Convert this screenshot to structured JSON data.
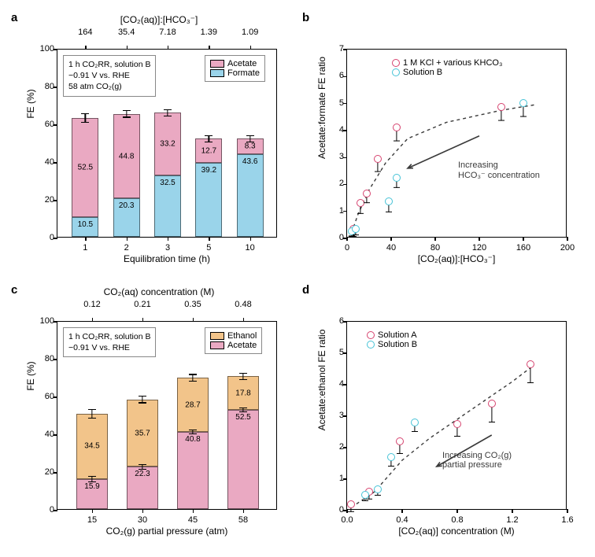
{
  "colors": {
    "acetate": "#eaa9c2",
    "formate": "#9ad4ea",
    "ethanol": "#f2c48a",
    "solutionA_marker": "#d6436f",
    "solutionB_marker": "#46c3d7",
    "kcl_marker": "#d6436f",
    "plot_border": "#000000",
    "annot_gray": "#3a3a3a"
  },
  "panel_a": {
    "label": "a",
    "type": "stacked-bar",
    "ylabel": "FE (%)",
    "xlabel": "Equilibration time (h)",
    "toplabel": "[CO₂(aq)]:[HCO₃⁻]",
    "topvals": [
      "164",
      "35.4",
      "7.18",
      "1.39",
      "1.09"
    ],
    "ylim": [
      0,
      100
    ],
    "ytick_step": 20,
    "categories": [
      "1",
      "2",
      "3",
      "5",
      "10"
    ],
    "series": [
      "Formate",
      "Acetate"
    ],
    "series_colors": {
      "Formate": "#9ad4ea",
      "Acetate": "#eaa9c2"
    },
    "stacks": [
      {
        "formate": 10.5,
        "acetate": 52.5
      },
      {
        "formate": 20.3,
        "acetate": 44.8
      },
      {
        "formate": 32.5,
        "acetate": 33.2
      },
      {
        "formate": 39.2,
        "acetate": 12.7
      },
      {
        "formate": 43.6,
        "acetate": 8.3
      }
    ],
    "err_total": [
      2.5,
      2,
      2,
      2,
      2
    ],
    "legend_items": [
      {
        "label": "Acetate",
        "color": "#eaa9c2"
      },
      {
        "label": "Formate",
        "color": "#9ad4ea"
      }
    ],
    "conditions": [
      "1 h CO₂RR, solution B",
      "−0.91 V vs. RHE",
      "58 atm CO₂(g)"
    ]
  },
  "panel_b": {
    "label": "b",
    "type": "scatter",
    "ylabel": "Acetate:formate FE ratio",
    "xlabel": "[CO₂(aq)]:[HCO₃⁻]",
    "xlim": [
      0,
      200
    ],
    "xtick_step": 40,
    "ylim": [
      0,
      7
    ],
    "ytick_step": 1,
    "legend_items": [
      {
        "label": "1 M KCl + various KHCO₃",
        "border": "#d6436f"
      },
      {
        "label": "Solution B",
        "border": "#46c3d7"
      }
    ],
    "points_red": [
      {
        "x": 6,
        "y": 0.3,
        "ey": 0.15
      },
      {
        "x": 12,
        "y": 1.25,
        "ey": 0.2
      },
      {
        "x": 18,
        "y": 1.6,
        "ey": 0.18
      },
      {
        "x": 28,
        "y": 2.9,
        "ey": 0.25
      },
      {
        "x": 45,
        "y": 4.05,
        "ey": 0.25
      },
      {
        "x": 140,
        "y": 4.8,
        "ey": 0.25
      }
    ],
    "points_cyan": [
      {
        "x": 4,
        "y": 0.2,
        "ey": 0.1
      },
      {
        "x": 8,
        "y": 0.3,
        "ey": 0.12
      },
      {
        "x": 38,
        "y": 1.3,
        "ey": 0.2
      },
      {
        "x": 45,
        "y": 2.2,
        "ey": 0.2
      },
      {
        "x": 160,
        "y": 4.95,
        "ey": 0.25
      }
    ],
    "annotation": "Increasing\nHCO₃⁻ concentration",
    "curve": [
      [
        4,
        0.2
      ],
      [
        10,
        0.9
      ],
      [
        20,
        1.8
      ],
      [
        35,
        2.8
      ],
      [
        55,
        3.7
      ],
      [
        90,
        4.3
      ],
      [
        140,
        4.75
      ],
      [
        170,
        4.95
      ]
    ]
  },
  "panel_c": {
    "label": "c",
    "type": "stacked-bar",
    "ylabel": "FE (%)",
    "xlabel": "CO₂(g) partial pressure (atm)",
    "toplabel": "CO₂(aq) concentration (M)",
    "topvals": [
      "0.12",
      "0.21",
      "0.35",
      "0.48"
    ],
    "ylim": [
      0,
      100
    ],
    "ytick_step": 20,
    "categories": [
      "15",
      "30",
      "45",
      "58"
    ],
    "series": [
      "Acetate",
      "Ethanol"
    ],
    "series_colors": {
      "Acetate": "#eaa9c2",
      "Ethanol": "#f2c48a"
    },
    "stacks": [
      {
        "acetate": 15.9,
        "ethanol": 34.5
      },
      {
        "acetate": 22.3,
        "ethanol": 35.7
      },
      {
        "acetate": 40.8,
        "ethanol": 28.7
      },
      {
        "acetate": 52.5,
        "ethanol": 17.8
      }
    ],
    "err_total": [
      2.5,
      2,
      2,
      2
    ],
    "legend_items": [
      {
        "label": "Ethanol",
        "color": "#f2c48a"
      },
      {
        "label": "Acetate",
        "color": "#eaa9c2"
      }
    ],
    "conditions": [
      "1 h CO₂RR, solution B",
      "−0.91 V vs. RHE"
    ]
  },
  "panel_d": {
    "label": "d",
    "type": "scatter",
    "ylabel": "Acetate:ethanol FE ratio",
    "xlabel": "[CO₂(aq)] concentration (M)",
    "xlim": [
      0,
      1.6
    ],
    "xtick_step": 0.4,
    "ylim": [
      0,
      6
    ],
    "ytick_step": 1,
    "legend_items": [
      {
        "label": "Solution A",
        "border": "#d6436f"
      },
      {
        "label": "Solution B",
        "border": "#46c3d7"
      }
    ],
    "points_red": [
      {
        "x": 0.03,
        "y": 0.15,
        "ey": 0.12
      },
      {
        "x": 0.16,
        "y": 0.55,
        "ey": 0.12
      },
      {
        "x": 0.38,
        "y": 2.15,
        "ey": 0.2
      },
      {
        "x": 0.8,
        "y": 2.7,
        "ey": 0.2
      },
      {
        "x": 1.05,
        "y": 3.35,
        "ey": 0.3
      },
      {
        "x": 1.33,
        "y": 4.6,
        "ey": 0.3
      }
    ],
    "points_cyan": [
      {
        "x": 0.13,
        "y": 0.45,
        "ey": 0.1
      },
      {
        "x": 0.22,
        "y": 0.62,
        "ey": 0.1
      },
      {
        "x": 0.32,
        "y": 1.65,
        "ey": 0.15
      },
      {
        "x": 0.49,
        "y": 2.75,
        "ey": 0.15
      }
    ],
    "annotation": "Increasing CO₂(g)\npartial pressure",
    "curve": [
      [
        0.03,
        0.1
      ],
      [
        0.2,
        0.6
      ],
      [
        0.4,
        1.6
      ],
      [
        0.6,
        2.3
      ],
      [
        0.8,
        2.9
      ],
      [
        1.0,
        3.5
      ],
      [
        1.2,
        4.1
      ],
      [
        1.35,
        4.6
      ]
    ]
  }
}
